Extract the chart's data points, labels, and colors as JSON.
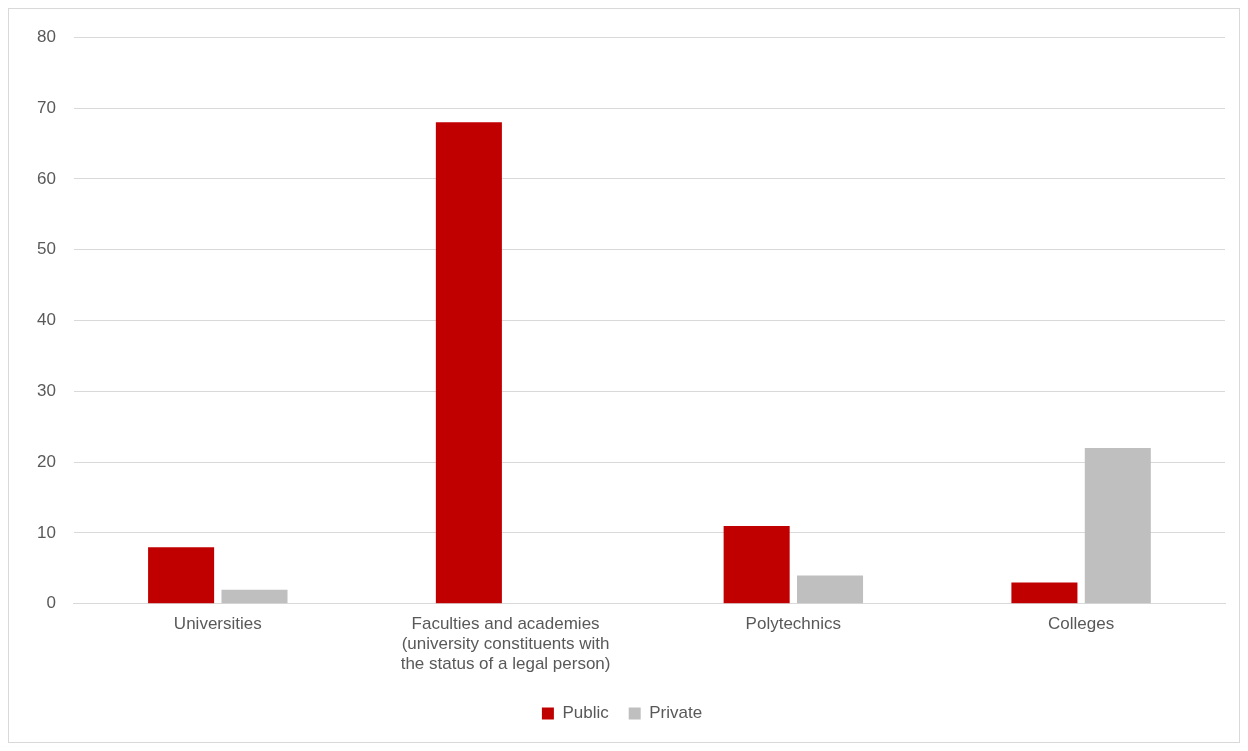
{
  "chart_data": {
    "type": "bar",
    "categories": [
      "Universities",
      "Faculties and academies (university constituents with the status of a legal person)",
      "Polytechnics",
      "Colleges"
    ],
    "series": [
      {
        "name": "Public",
        "color": "#c00000",
        "values": [
          8,
          68,
          11,
          3
        ]
      },
      {
        "name": "Private",
        "color": "#bfbfbf",
        "values": [
          2,
          0,
          4,
          22
        ]
      }
    ],
    "ylim": [
      0,
      80
    ],
    "yticks": [
      0,
      10,
      20,
      30,
      40,
      50,
      60,
      70,
      80
    ],
    "grid": "y",
    "legend": "bottom"
  }
}
